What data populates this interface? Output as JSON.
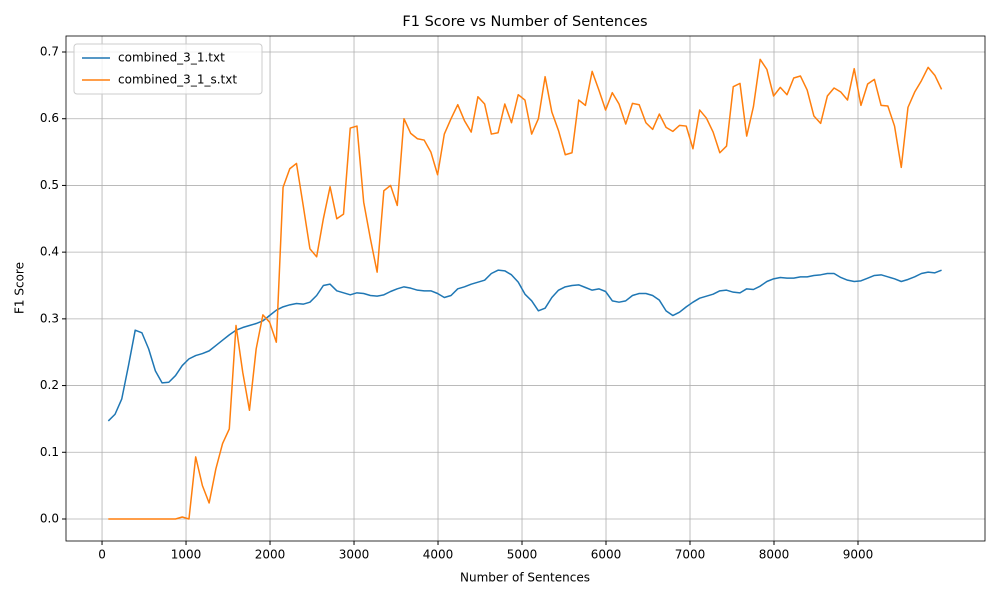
{
  "chart_data": {
    "type": "line",
    "title": "F1 Score vs Number of Sentences",
    "xlabel": "Number of Sentences",
    "ylabel": "F1 Score",
    "x": [
      75,
      155,
      235,
      315,
      395,
      475,
      555,
      635,
      715,
      795,
      875,
      955,
      1035,
      1115,
      1195,
      1275,
      1355,
      1435,
      1515,
      1595,
      1675,
      1755,
      1835,
      1915,
      1995,
      2075,
      2155,
      2235,
      2315,
      2395,
      2475,
      2555,
      2635,
      2715,
      2795,
      2875,
      2955,
      3035,
      3115,
      3195,
      3275,
      3355,
      3435,
      3515,
      3595,
      3675,
      3755,
      3835,
      3915,
      3995,
      4075,
      4155,
      4235,
      4315,
      4395,
      4475,
      4555,
      4635,
      4715,
      4795,
      4875,
      4955,
      5035,
      5115,
      5195,
      5275,
      5355,
      5435,
      5515,
      5595,
      5675,
      5755,
      5835,
      5915,
      5995,
      6075,
      6155,
      6235,
      6315,
      6395,
      6475,
      6555,
      6635,
      6715,
      6795,
      6875,
      6955,
      7035,
      7115,
      7195,
      7275,
      7355,
      7435,
      7515,
      7595,
      7675,
      7755,
      7835,
      7915,
      7995,
      8075,
      8155,
      8235,
      8315,
      8395,
      8475,
      8555,
      8635,
      8715,
      8795,
      8875,
      8955,
      9035,
      9115,
      9195,
      9275,
      9355,
      9435,
      9515,
      9595,
      9675,
      9755,
      9835,
      9915,
      9995
    ],
    "series": [
      {
        "name": "combined_3_1.txt",
        "color": "#1f77b4",
        "values": [
          0.147,
          0.157,
          0.18,
          0.23,
          0.283,
          0.279,
          0.255,
          0.222,
          0.204,
          0.205,
          0.215,
          0.23,
          0.24,
          0.245,
          0.248,
          0.252,
          0.26,
          0.268,
          0.276,
          0.283,
          0.287,
          0.29,
          0.293,
          0.297,
          0.305,
          0.313,
          0.318,
          0.321,
          0.323,
          0.322,
          0.325,
          0.335,
          0.35,
          0.352,
          0.342,
          0.339,
          0.336,
          0.339,
          0.338,
          0.335,
          0.334,
          0.336,
          0.341,
          0.345,
          0.348,
          0.346,
          0.343,
          0.342,
          0.342,
          0.338,
          0.332,
          0.335,
          0.345,
          0.348,
          0.352,
          0.355,
          0.358,
          0.368,
          0.373,
          0.372,
          0.366,
          0.355,
          0.337,
          0.327,
          0.312,
          0.316,
          0.332,
          0.343,
          0.348,
          0.35,
          0.351,
          0.347,
          0.343,
          0.345,
          0.341,
          0.327,
          0.325,
          0.327,
          0.335,
          0.338,
          0.338,
          0.335,
          0.328,
          0.312,
          0.305,
          0.31,
          0.318,
          0.325,
          0.331,
          0.334,
          0.337,
          0.342,
          0.343,
          0.34,
          0.339,
          0.345,
          0.344,
          0.349,
          0.356,
          0.36,
          0.362,
          0.361,
          0.361,
          0.363,
          0.363,
          0.365,
          0.366,
          0.368,
          0.368,
          0.362,
          0.358,
          0.356,
          0.357,
          0.361,
          0.365,
          0.366,
          0.363,
          0.36,
          0.356,
          0.359,
          0.363,
          0.368,
          0.37,
          0.369,
          0.373
        ]
      },
      {
        "name": "combined_3_1_s.txt",
        "color": "#ff7f0e",
        "values": [
          0,
          0,
          0,
          0,
          0,
          0,
          0,
          0,
          0,
          0,
          0,
          0.003,
          0,
          0.093,
          0.05,
          0.024,
          0.075,
          0.113,
          0.135,
          0.29,
          0.22,
          0.163,
          0.255,
          0.306,
          0.295,
          0.265,
          0.497,
          0.525,
          0.533,
          0.47,
          0.405,
          0.393,
          0.45,
          0.498,
          0.45,
          0.457,
          0.586,
          0.589,
          0.475,
          0.42,
          0.37,
          0.492,
          0.5,
          0.47,
          0.6,
          0.578,
          0.57,
          0.568,
          0.55,
          0.516,
          0.577,
          0.6,
          0.621,
          0.597,
          0.58,
          0.633,
          0.622,
          0.577,
          0.579,
          0.622,
          0.594,
          0.636,
          0.628,
          0.577,
          0.6,
          0.663,
          0.61,
          0.582,
          0.546,
          0.549,
          0.628,
          0.62,
          0.671,
          0.643,
          0.613,
          0.639,
          0.622,
          0.592,
          0.623,
          0.621,
          0.594,
          0.584,
          0.607,
          0.587,
          0.581,
          0.59,
          0.589,
          0.555,
          0.613,
          0.601,
          0.58,
          0.549,
          0.559,
          0.648,
          0.653,
          0.574,
          0.618,
          0.689,
          0.674,
          0.634,
          0.647,
          0.636,
          0.661,
          0.664,
          0.643,
          0.604,
          0.593,
          0.634,
          0.646,
          0.64,
          0.628,
          0.675,
          0.62,
          0.652,
          0.659,
          0.62,
          0.619,
          0.589,
          0.527,
          0.617,
          0.64,
          0.657,
          0.677,
          0.665,
          0.644
        ]
      }
    ],
    "xlim": [
      -429,
      10512
    ],
    "xticks": [
      0,
      1000,
      2000,
      3000,
      4000,
      5000,
      6000,
      7000,
      8000,
      9000
    ],
    "ylim": [
      -0.033,
      0.724
    ],
    "yticks": [
      {
        "value": 0,
        "label": "0.0"
      },
      0.1,
      0.2,
      0.3,
      0.4,
      0.5,
      0.6,
      0.7
    ],
    "grid": true,
    "legend": "upper-left"
  }
}
